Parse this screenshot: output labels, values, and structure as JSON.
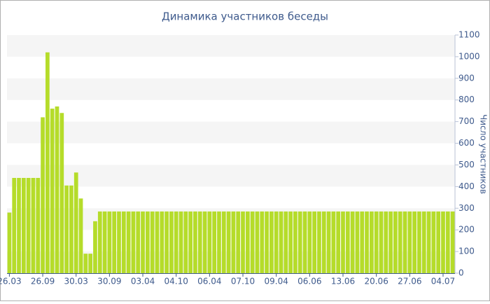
{
  "chart_data": {
    "type": "bar",
    "title": "Динамика участников беседы",
    "y_label": "Число участников",
    "categories": [
      "26.03",
      null,
      null,
      null,
      null,
      null,
      null,
      "26.09",
      null,
      null,
      null,
      null,
      null,
      null,
      "30.03",
      null,
      null,
      null,
      null,
      null,
      null,
      "30.09",
      null,
      null,
      null,
      null,
      null,
      null,
      "03.04",
      null,
      null,
      null,
      null,
      null,
      null,
      "04.10",
      null,
      null,
      null,
      null,
      null,
      null,
      "06.04",
      null,
      null,
      null,
      null,
      null,
      null,
      "07.10",
      null,
      null,
      null,
      null,
      null,
      null,
      "09.04",
      null,
      null,
      null,
      null,
      null,
      null,
      "06.06",
      null,
      null,
      null,
      null,
      null,
      null,
      "13.06",
      null,
      null,
      null,
      null,
      null,
      null,
      "20.06",
      null,
      null,
      null,
      null,
      null,
      null,
      "27.06",
      null,
      null,
      null,
      null,
      null,
      null,
      "04.07",
      null,
      null
    ],
    "values": [
      280,
      440,
      440,
      440,
      440,
      440,
      440,
      720,
      1020,
      760,
      770,
      740,
      405,
      405,
      465,
      345,
      90,
      90,
      240,
      285,
      285,
      285,
      285,
      285,
      285,
      285,
      285,
      285,
      285,
      285,
      285,
      285,
      285,
      285,
      285,
      285,
      285,
      285,
      285,
      285,
      285,
      285,
      285,
      285,
      285,
      285,
      285,
      285,
      285,
      285,
      285,
      285,
      285,
      285,
      285,
      285,
      285,
      285,
      285,
      285,
      285,
      285,
      285,
      285,
      285,
      285,
      285,
      285,
      285,
      285,
      285,
      285,
      285,
      285,
      285,
      285,
      285,
      285,
      285,
      285,
      285,
      285,
      285,
      285,
      285,
      285,
      285,
      285,
      285,
      285,
      285,
      285,
      285,
      285
    ],
    "color": "#b5dc2a",
    "ylim": [
      0,
      1100
    ],
    "yticks": [
      0,
      100,
      200,
      300,
      400,
      500,
      600,
      700,
      800,
      900,
      1000,
      1100
    ],
    "grid": "bands",
    "y_axis_side": "right"
  }
}
